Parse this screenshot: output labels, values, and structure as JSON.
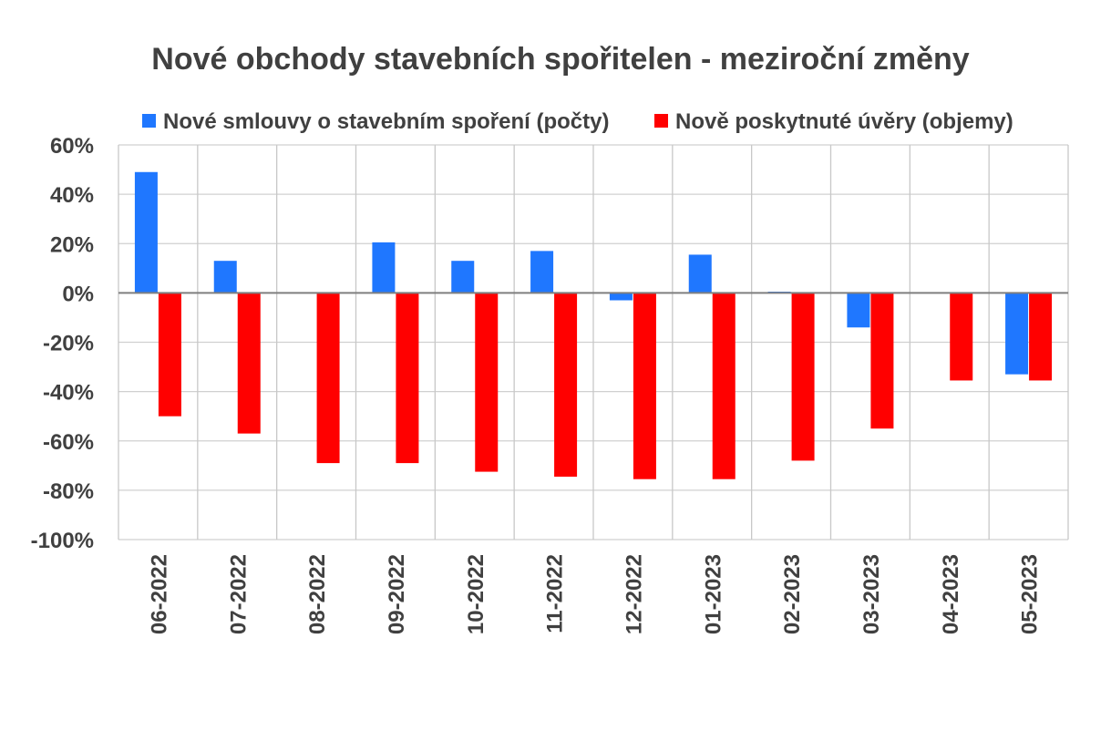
{
  "chart_data": {
    "type": "bar",
    "title": "Nové obchody stavebních spořitelen - meziroční změny",
    "categories": [
      "06-2022",
      "07-2022",
      "08-2022",
      "09-2022",
      "10-2022",
      "11-2022",
      "12-2022",
      "01-2023",
      "02-2023",
      "03-2023",
      "04-2023",
      "05-2023"
    ],
    "series": [
      {
        "name": "Nové smlouvy o stavebním spoření (počty)",
        "color": "#1f77ff",
        "values": [
          49,
          13,
          null,
          20.5,
          13,
          17,
          -3,
          15.5,
          0.5,
          -14,
          null,
          -33
        ]
      },
      {
        "name": "Nově poskytnuté úvěry (objemy)",
        "color": "#ff0000",
        "values": [
          -50,
          -57,
          -69,
          -69,
          -72.5,
          -74.5,
          -75.5,
          -75.5,
          -68,
          -55,
          -35.5,
          -35.5
        ]
      }
    ],
    "ylim": [
      -100,
      60
    ],
    "yticks": [
      60,
      40,
      20,
      0,
      -20,
      -40,
      -60,
      -80,
      -100
    ],
    "ytick_labels": [
      "60%",
      "40%",
      "20%",
      "0%",
      "-20%",
      "-40%",
      "-60%",
      "-80%",
      "-100%"
    ],
    "legend": "top",
    "grid": true
  }
}
